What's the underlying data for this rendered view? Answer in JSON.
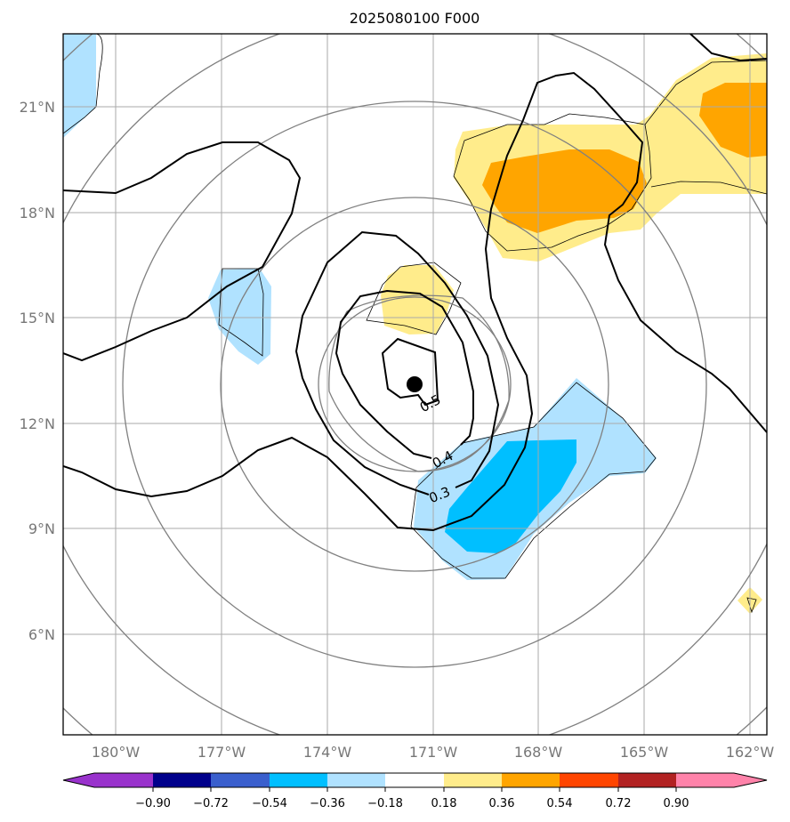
{
  "title": "2025080100 F000",
  "lat_labels": [
    "21°N",
    "18°N",
    "15°N",
    "12°N",
    "9°N",
    "6°N"
  ],
  "lon_labels": [
    "180°W",
    "177°W",
    "174°W",
    "171°W",
    "168°W",
    "165°W",
    "162°W"
  ],
  "contour_labels": [
    "0.5",
    "0.4",
    "0.3"
  ],
  "colorbar": {
    "ticks": [
      "−0.90",
      "−0.72",
      "−0.54",
      "−0.36",
      "−0.18",
      "0.18",
      "0.36",
      "0.54",
      "0.72",
      "0.90"
    ],
    "colors": [
      "#9932cc",
      "#00008b",
      "#3a5fcd",
      "#00bfff",
      "#b0e2ff",
      "#ffffff",
      "#ffec8b",
      "#ffa500",
      "#ff4500",
      "#b22222",
      "#ff83aa"
    ]
  },
  "colors": {
    "light_blue": "#b0e2ff",
    "deep_sky_blue": "#00bfff",
    "light_yellow": "#ffec8b",
    "orange": "#ffa500",
    "contour": "#000000",
    "range_rings": "#808080",
    "gridlines": "#aaaaaa"
  },
  "center_marker": {
    "lat": 13.1,
    "lon": -171.5
  }
}
